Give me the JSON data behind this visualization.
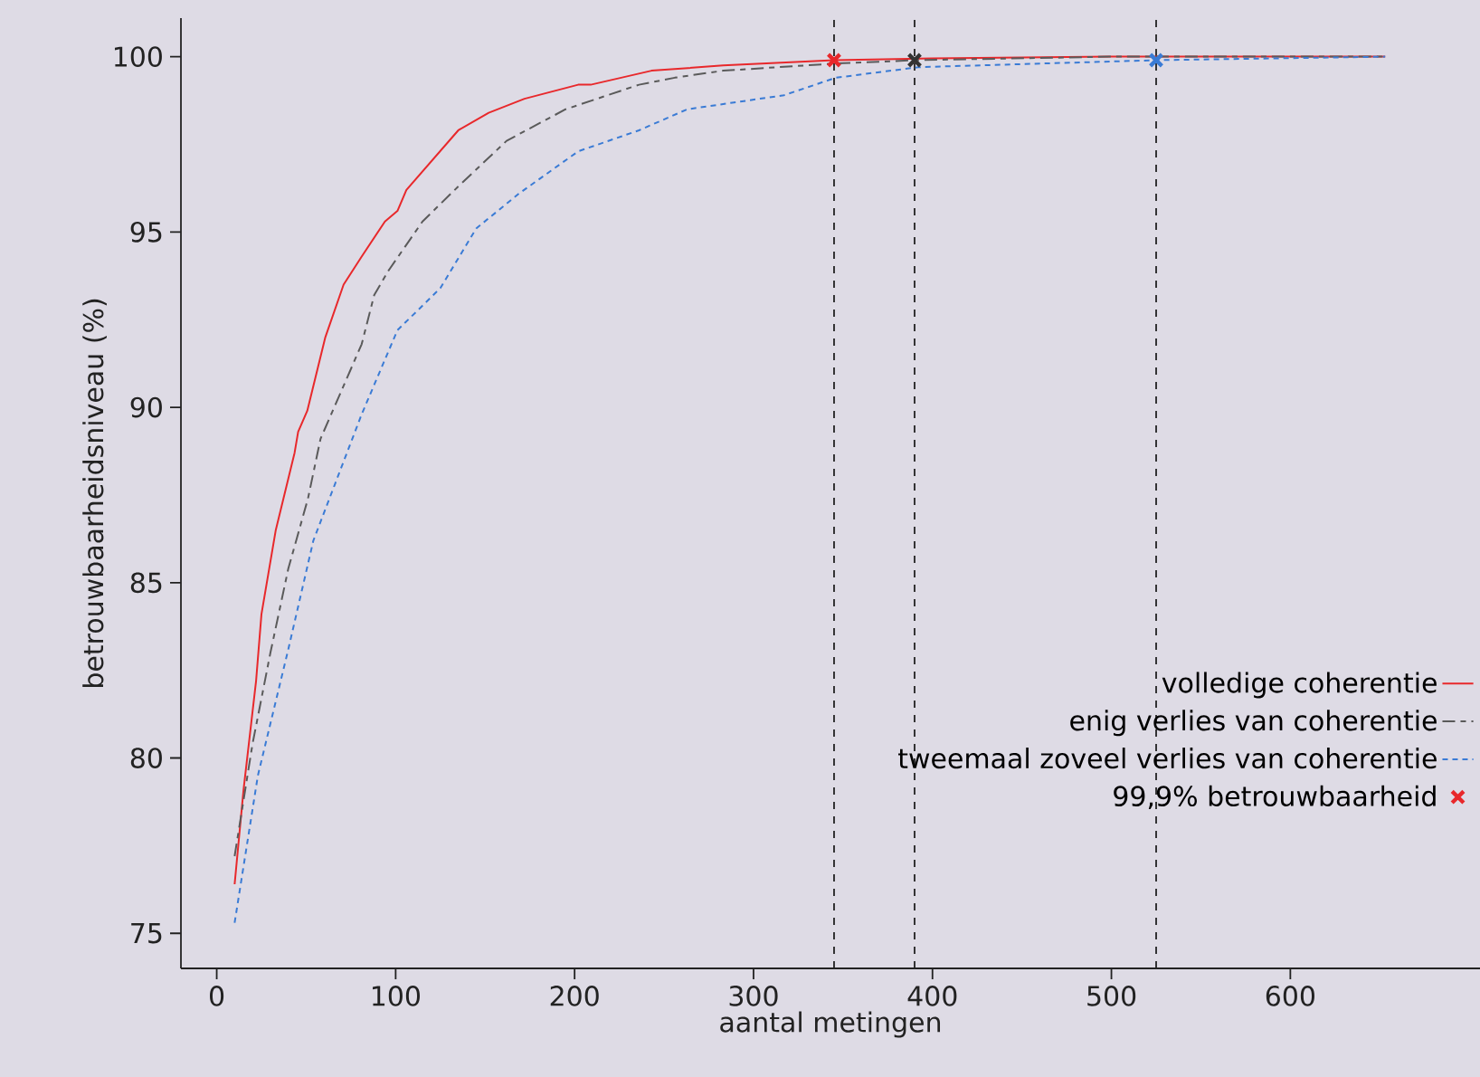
{
  "chart_data": {
    "type": "line",
    "xlabel": "aantal metingen",
    "ylabel": "betrouwbaarheidsniveau (%)",
    "xlim": [
      -20,
      706
    ],
    "ylim": [
      74,
      101.1
    ],
    "xticks": [
      0,
      100,
      200,
      300,
      400,
      500,
      600
    ],
    "yticks": [
      75,
      80,
      85,
      90,
      95,
      100
    ],
    "grid": false,
    "legend": "bottom right",
    "marker": "none",
    "series": [
      {
        "name": "volledige coherentie",
        "color": "#e8282b",
        "line_style": "solid",
        "x": [
          10,
          15,
          22,
          25,
          33,
          43.5,
          45.5,
          50.6,
          60.7,
          70.9,
          81,
          94,
          101,
          106,
          135,
          152,
          172,
          202,
          209,
          243,
          283,
          345,
          400,
          500,
          653
        ],
        "values": [
          76.4,
          79.1,
          82.2,
          84.1,
          86.5,
          88.7,
          89.3,
          89.9,
          92.0,
          93.5,
          94.3,
          95.3,
          95.6,
          96.2,
          97.9,
          98.4,
          98.8,
          99.2,
          99.2,
          99.6,
          99.75,
          99.9,
          99.95,
          100,
          100
        ]
      },
      {
        "name": "enig verlies van coherentie",
        "color": "#5a5a5a",
        "line_style": "dashed",
        "x": [
          10,
          20,
          30,
          40,
          51,
          58,
          81,
          88,
          96,
          115,
          135,
          162,
          195,
          236,
          256,
          283,
          344,
          390,
          500,
          653
        ],
        "values": [
          77.2,
          80.4,
          83.0,
          85.4,
          87.4,
          89.1,
          91.8,
          93.2,
          93.9,
          95.3,
          96.3,
          97.6,
          98.5,
          99.2,
          99.4,
          99.6,
          99.8,
          99.9,
          100,
          100
        ]
      },
      {
        "name": "tweemaal zoveel verlies van coherentie",
        "color": "#3a7bd5",
        "line_style": "dotted",
        "x": [
          10,
          23,
          40,
          54,
          66,
          81,
          101,
          125,
          145,
          169,
          202,
          236,
          263,
          317,
          346,
          392,
          525,
          653
        ],
        "values": [
          75.3,
          79.5,
          83.1,
          86.2,
          87.8,
          89.8,
          92.2,
          93.4,
          95.1,
          96.1,
          97.3,
          97.9,
          98.5,
          98.9,
          99.4,
          99.7,
          99.9,
          100
        ]
      },
      {
        "name": "99,9% betrouwbaarheid",
        "type": "scatter",
        "marker": "cross",
        "x": [
          345,
          390,
          525
        ],
        "values": [
          99.9,
          99.9,
          99.9
        ],
        "colors": [
          "#e8282b",
          "#333333",
          "#3a7bd5"
        ]
      }
    ],
    "ref_lines": [
      {
        "axis": "x",
        "value": 345,
        "color": "#222222",
        "line_style": "dashed"
      },
      {
        "axis": "x",
        "value": 390,
        "color": "#222222",
        "line_style": "dashed"
      },
      {
        "axis": "x",
        "value": 525,
        "color": "#222222",
        "line_style": "dashed"
      }
    ]
  }
}
